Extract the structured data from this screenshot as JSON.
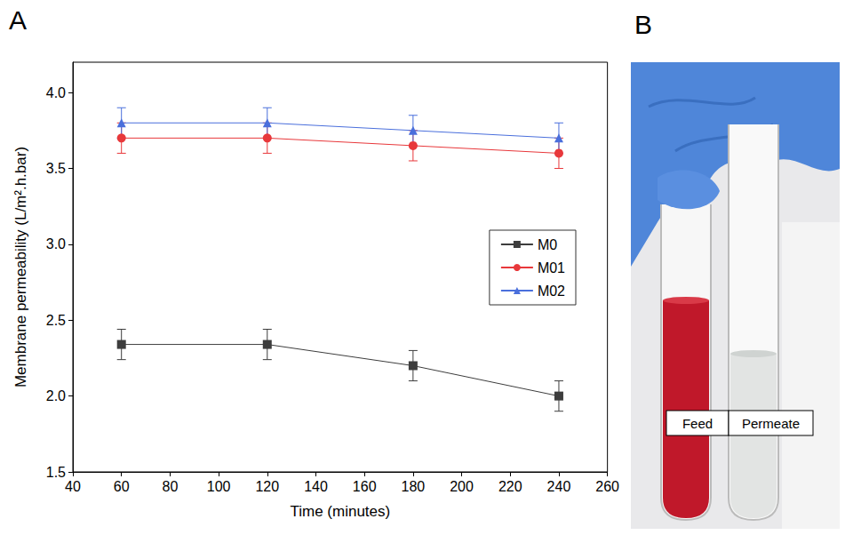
{
  "chart_data": {
    "type": "line",
    "panel_label": "A",
    "x_label": "Time (minutes)",
    "y_label": "Membrane permeability (L/m².h.bar)",
    "x": [
      60,
      120,
      180,
      240
    ],
    "series": [
      {
        "name": "M0",
        "color": "#3d3d3d",
        "marker": "square",
        "values": [
          2.34,
          2.34,
          2.2,
          2.0
        ],
        "errors": [
          0.1,
          0.1,
          0.1,
          0.1
        ]
      },
      {
        "name": "M01",
        "color": "#e8383b",
        "marker": "circle",
        "values": [
          3.7,
          3.7,
          3.65,
          3.6
        ],
        "errors": [
          0.1,
          0.1,
          0.1,
          0.1
        ]
      },
      {
        "name": "M02",
        "color": "#4a6fdc",
        "marker": "triangle",
        "values": [
          3.8,
          3.8,
          3.75,
          3.7
        ],
        "errors": [
          0.1,
          0.1,
          0.1,
          0.1
        ]
      }
    ],
    "xlim": [
      40,
      260
    ],
    "xticks": [
      40,
      60,
      80,
      100,
      120,
      140,
      160,
      180,
      200,
      220,
      240,
      260
    ],
    "ylim": [
      1.5,
      4.2
    ],
    "yticks": [
      1.5,
      {
        "value": 2,
        "label": "2.0"
      },
      2.5,
      {
        "value": 3,
        "label": "3.0"
      },
      3.5,
      {
        "value": 4,
        "label": "4.0"
      }
    ],
    "grid": false,
    "legend": "right"
  },
  "photo": {
    "panel_label": "B",
    "labels": [
      "Feed",
      "Permeate"
    ]
  }
}
